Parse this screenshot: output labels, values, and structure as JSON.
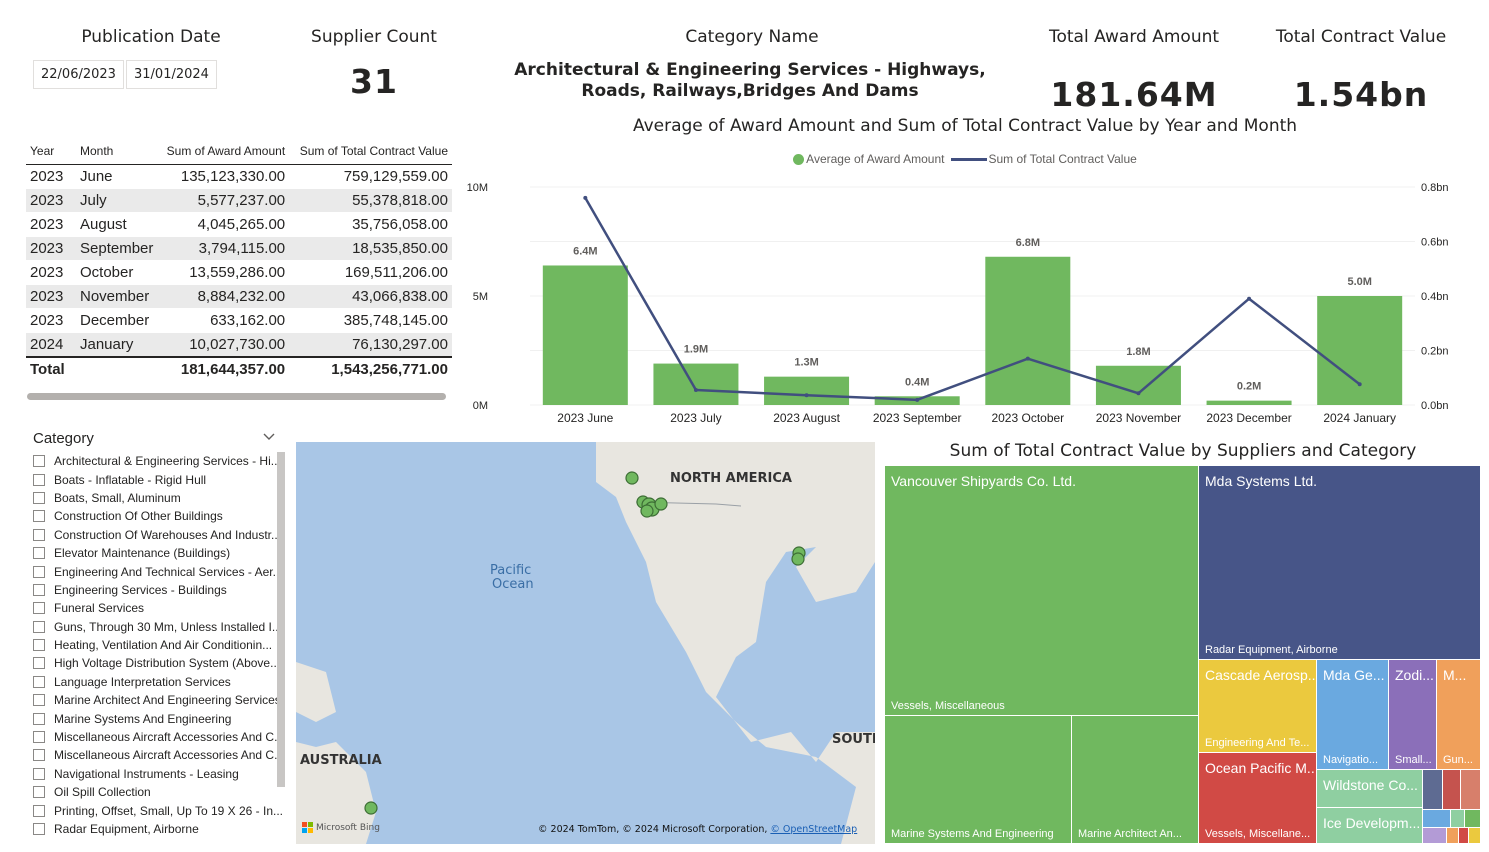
{
  "cards": {
    "publication_date": {
      "title": "Publication Date",
      "start": "22/06/2023",
      "end": "31/01/2024"
    },
    "supplier_count": {
      "title": "Supplier Count",
      "value": "31"
    },
    "category_name": {
      "title": "Category Name",
      "value": "Architectural & Engineering Services - Highways, Roads, Railways,Bridges And Dams"
    },
    "total_award": {
      "title": "Total Award Amount",
      "value": "181.64M"
    },
    "total_contract": {
      "title": "Total Contract Value",
      "value": "1.54bn"
    }
  },
  "table": {
    "headers": [
      "Year",
      "Month",
      "Sum of Award Amount",
      "Sum of Total Contract Value"
    ],
    "rows": [
      [
        "2023",
        "June",
        "135,123,330.00",
        "759,129,559.00"
      ],
      [
        "2023",
        "July",
        "5,577,237.00",
        "55,378,818.00"
      ],
      [
        "2023",
        "August",
        "4,045,265.00",
        "35,756,058.00"
      ],
      [
        "2023",
        "September",
        "3,794,115.00",
        "18,535,850.00"
      ],
      [
        "2023",
        "October",
        "13,559,286.00",
        "169,511,206.00"
      ],
      [
        "2023",
        "November",
        "8,884,232.00",
        "43,066,838.00"
      ],
      [
        "2023",
        "December",
        "633,162.00",
        "385,748,145.00"
      ],
      [
        "2024",
        "January",
        "10,027,730.00",
        "76,130,297.00"
      ]
    ],
    "total": [
      "Total",
      "181,644,357.00",
      "1,543,256,771.00"
    ]
  },
  "chart_data": {
    "type": "bar",
    "title": "Average of Award Amount and Sum of Total Contract Value by Year and Month",
    "categories": [
      "2023 June",
      "2023 July",
      "2023 August",
      "2023 September",
      "2023 October",
      "2023 November",
      "2023 December",
      "2024 January"
    ],
    "series": [
      {
        "name": "Average of Award Amount",
        "type": "bar",
        "axis": "left",
        "values": [
          6.4,
          1.9,
          1.3,
          0.4,
          6.8,
          1.8,
          0.2,
          5.0
        ],
        "labels": [
          "6.4M",
          "1.9M",
          "1.3M",
          "0.4M",
          "6.8M",
          "1.8M",
          "0.2M",
          "5.0M"
        ],
        "color": "#70b85f"
      },
      {
        "name": "Sum of Total Contract Value",
        "type": "line",
        "axis": "right",
        "values": [
          0.76,
          0.055,
          0.036,
          0.019,
          0.17,
          0.043,
          0.39,
          0.076
        ],
        "color": "#414f7f"
      }
    ],
    "y_left": {
      "ticks": [
        "0M",
        "5M",
        "10M"
      ],
      "range": [
        0,
        10
      ]
    },
    "y_right": {
      "ticks": [
        "0.0bn",
        "0.2bn",
        "0.4bn",
        "0.6bn",
        "0.8bn"
      ],
      "range": [
        0,
        0.8
      ]
    },
    "legend_position": "top-center"
  },
  "slicer": {
    "title": "Category",
    "items": [
      "Architectural & Engineering Services - Hi...",
      "Boats - Inflatable - Rigid Hull",
      "Boats, Small, Aluminum",
      "Construction Of Other Buildings",
      "Construction Of Warehouses And Industr...",
      "Elevator Maintenance (Buildings)",
      "Engineering And Technical Services - Aer...",
      "Engineering Services - Buildings",
      "Funeral Services",
      "Guns, Through 30 Mm, Unless Installed I...",
      "Heating, Ventilation And Air Conditionin...",
      "High Voltage Distribution System (Above...",
      "Language Interpretation Services",
      "Marine Architect And Engineering Services",
      "Marine Systems And Engineering",
      "Miscellaneous Aircraft Accessories And C...",
      "Miscellaneous Aircraft Accessories And C...",
      "Navigational Instruments - Leasing",
      "Oil Spill Collection",
      "Printing, Offset, Small, Up To 19 X 26 - In...",
      "Radar Equipment, Airborne"
    ]
  },
  "map": {
    "labels": {
      "north_america": "NORTH AMERICA",
      "pacific": "Pacific",
      "ocean": "Ocean",
      "australia": "AUSTRALIA",
      "south": "SOUTH"
    },
    "attribution": "© 2024 TomTom, © 2024 Microsoft Corporation, ",
    "osm": "© OpenStreetMap",
    "bing": "Microsoft Bing",
    "water_color": "#a9c6e6",
    "land_color": "#e8e6e0"
  },
  "treemap": {
    "title": "Sum of Total Contract Value by Suppliers and Category",
    "cells": [
      {
        "name": "Vancouver Shipyards Co. Ltd.",
        "cat": "Vessels, Miscellaneous",
        "color": "#70b85f"
      },
      {
        "name": "",
        "cat": "Marine Systems And Engineering",
        "color": "#70b85f"
      },
      {
        "name": "",
        "cat": "Marine Architect An...",
        "color": "#70b85f"
      },
      {
        "name": "Mda Systems Ltd.",
        "cat": "Radar Equipment, Airborne",
        "color": "#475588"
      },
      {
        "name": "Cascade Aerosp...",
        "cat": "Engineering And Te...",
        "color": "#ebc93e"
      },
      {
        "name": "Mda Ge...",
        "cat": "Navigatio...",
        "color": "#6aa9e0"
      },
      {
        "name": "Zodi...",
        "cat": "Small...",
        "color": "#8b6fb9"
      },
      {
        "name": "M...",
        "cat": "Gun...",
        "color": "#f0a05b"
      },
      {
        "name": "Ocean Pacific M...",
        "cat": "Vessels, Miscellane...",
        "color": "#d14a45"
      },
      {
        "name": "Wildstone Co...",
        "cat": "",
        "color": "#8fcfa1"
      },
      {
        "name": "Ice Developm...",
        "cat": "",
        "color": "#8fcfa1"
      }
    ]
  }
}
